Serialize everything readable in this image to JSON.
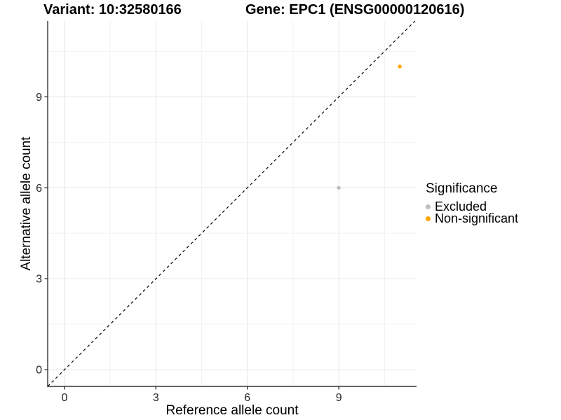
{
  "chart_data": {
    "type": "scatter",
    "title_left": "Variant: 10:32580166",
    "title_right": "Gene: EPC1 (ENSG00000120616)",
    "xlabel": "Reference allele count",
    "ylabel": "Alternative allele count",
    "xlim": [
      -0.55,
      11.55
    ],
    "ylim": [
      -0.55,
      11.5
    ],
    "xticks": [
      0,
      3,
      6,
      9
    ],
    "yticks": [
      0,
      3,
      6,
      9
    ],
    "xminor": [
      1.5,
      4.5,
      7.5,
      10.5
    ],
    "yminor": [
      1.5,
      4.5,
      7.5,
      10.5
    ],
    "grid": "major+minor",
    "identity_line": {
      "slope": 1,
      "intercept": 0,
      "style": "dashed",
      "color": "#000000"
    },
    "series": [
      {
        "name": "Excluded",
        "color": "#BEBEBE",
        "points": [
          {
            "x": 9,
            "y": 6
          }
        ]
      },
      {
        "name": "Non-significant",
        "color": "#FFA500",
        "points": [
          {
            "x": 11,
            "y": 10
          }
        ]
      }
    ],
    "legend": {
      "title": "Significance",
      "position": "right",
      "entries": [
        "Excluded",
        "Non-significant"
      ]
    }
  },
  "style": {
    "background": "#FFFFFF",
    "axis_color": "#333333",
    "grid_major_color": "#E6E6E6",
    "grid_minor_color": "#F2F2F2",
    "tick_text_color": "#262626",
    "point_radius": 2.7,
    "tick_label_size": 16
  }
}
